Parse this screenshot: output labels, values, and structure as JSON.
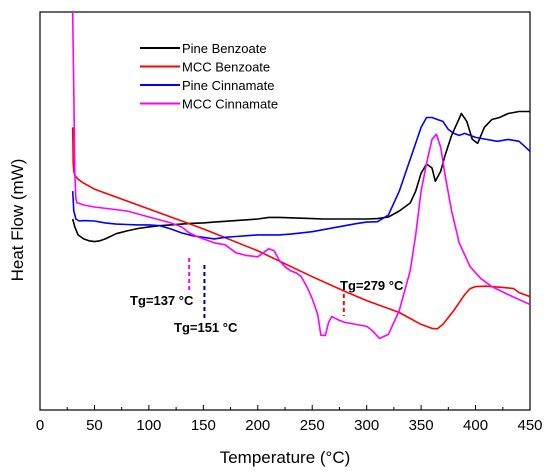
{
  "chart_data": {
    "type": "line",
    "xlabel": "Temperature (°C)",
    "ylabel": "Heat Flow (mW)",
    "xlim": [
      0,
      450
    ],
    "ylim": [
      0,
      100
    ],
    "xticks": [
      "0",
      "50",
      "100",
      "150",
      "200",
      "250",
      "300",
      "350",
      "400",
      "450"
    ],
    "legend_position": "top-center",
    "series": [
      {
        "name": "Pine Benzoate",
        "color": "#000000",
        "x": [
          30,
          32,
          35,
          40,
          45,
          50,
          55,
          60,
          70,
          80,
          90,
          100,
          110,
          120,
          130,
          140,
          150,
          160,
          170,
          180,
          190,
          200,
          210,
          220,
          230,
          240,
          250,
          260,
          270,
          280,
          290,
          300,
          310,
          320,
          330,
          340,
          345,
          350,
          355,
          360,
          363,
          368,
          372,
          378,
          383,
          387,
          392,
          397,
          402,
          408,
          415,
          422,
          430,
          440,
          450
        ],
        "y": [
          48,
          46,
          44,
          43,
          42.5,
          42.3,
          42.5,
          43,
          44.3,
          45,
          45.6,
          46,
          46.3,
          46.5,
          46.7,
          46.9,
          47,
          47.2,
          47.4,
          47.6,
          47.8,
          48,
          48.4,
          48.4,
          48.3,
          48.2,
          48.1,
          48,
          48,
          48,
          48,
          48,
          48.1,
          48.5,
          50,
          52,
          55,
          59.5,
          61.8,
          60.8,
          57.5,
          60,
          64,
          69,
          72,
          74.5,
          72.5,
          68,
          67,
          71,
          73,
          73.5,
          74.5,
          75,
          75
        ]
      },
      {
        "name": "MCC Benzoate",
        "color": "#ff0000",
        "x": [
          30,
          30.5,
          31,
          32,
          35,
          40,
          50,
          100,
          150,
          200,
          250,
          280,
          300,
          330,
          350,
          360,
          365,
          370,
          380,
          390,
          395,
          400,
          410,
          425,
          435,
          440,
          450
        ],
        "y": [
          71,
          62,
          60,
          59,
          58,
          57,
          55.5,
          50.5,
          45.5,
          40,
          33.5,
          29.8,
          27.5,
          24.5,
          21.5,
          20.5,
          20.4,
          21.5,
          25,
          29,
          30.5,
          31,
          31.1,
          30.8,
          30.5,
          29.5,
          28.5
        ]
      },
      {
        "name": "Pine Cinnamate",
        "color": "#0000ff",
        "x": [
          30,
          31,
          33,
          36,
          40,
          50,
          60,
          70,
          80,
          90,
          100,
          110,
          120,
          130,
          140,
          150,
          160,
          170,
          180,
          190,
          200,
          210,
          220,
          230,
          240,
          250,
          260,
          270,
          280,
          290,
          300,
          310,
          320,
          330,
          340,
          350,
          355,
          360,
          365,
          370,
          375,
          380,
          385,
          390,
          400,
          410,
          420,
          430,
          440,
          450
        ],
        "y": [
          55,
          50,
          48,
          47.5,
          47.6,
          47.5,
          47,
          46.7,
          46.6,
          46.5,
          46.5,
          46.3,
          45.5,
          44.5,
          43.8,
          43.4,
          43,
          43.4,
          43.6,
          43.8,
          44,
          44,
          44,
          44.2,
          44.5,
          44.8,
          45.3,
          45.8,
          46.3,
          46.8,
          47.2,
          47.3,
          49,
          55,
          63,
          71,
          73.5,
          73.5,
          73,
          72.5,
          70.5,
          69.5,
          69,
          69.5,
          68.5,
          68,
          67.5,
          68,
          67.5,
          65
        ]
      },
      {
        "name": "MCC Cinnamate",
        "color": "#ff00ff",
        "x": [
          30,
          31,
          32,
          33,
          34,
          35,
          40,
          50,
          80,
          100,
          120,
          130,
          137,
          145,
          150,
          160,
          170,
          180,
          190,
          200,
          205,
          210,
          215,
          220,
          225,
          230,
          235,
          240,
          245,
          250,
          255,
          258,
          262,
          265,
          268,
          270,
          275,
          280,
          290,
          300,
          305,
          310,
          312,
          320,
          330,
          340,
          345,
          350,
          355,
          360,
          364,
          368,
          372,
          378,
          385,
          395,
          405,
          415,
          430,
          450
        ],
        "y": [
          100,
          80,
          60,
          53,
          52,
          52,
          51.5,
          51,
          50,
          48.5,
          47,
          46,
          44.5,
          43.5,
          43,
          42,
          41.5,
          39.5,
          38.8,
          38.5,
          39.5,
          40.5,
          40,
          37.5,
          36,
          35,
          34.5,
          33.5,
          31,
          28,
          24,
          18.8,
          18.7,
          22,
          23.5,
          23.2,
          22.5,
          22,
          21.5,
          21,
          20,
          18.5,
          18,
          19,
          25,
          35,
          44,
          55,
          62,
          68,
          69.3,
          66,
          59,
          50,
          42,
          36,
          33,
          31,
          29,
          26.5
        ]
      }
    ],
    "annotations": [
      {
        "text": "Tg=137 °C",
        "x": 137,
        "color": "#ff00ff"
      },
      {
        "text": "Tg=151 °C",
        "x": 151,
        "color": "#00008b"
      },
      {
        "text": "Tg=279 °C",
        "x": 279,
        "color": "#ff0000"
      }
    ]
  }
}
